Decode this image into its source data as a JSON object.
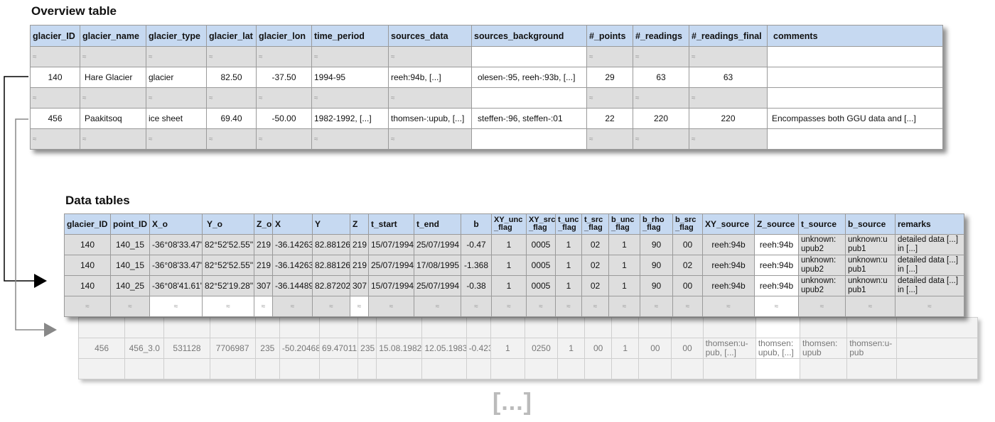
{
  "overview": {
    "title": "Overview table",
    "headers": [
      "glacier_ID",
      "glacier_name",
      "glacier_type",
      "glacier_lat",
      "glacier_lon",
      "time_period",
      "sources_data",
      "sources_background",
      "#_points",
      "#_readings",
      "#_readings_final",
      "comments"
    ],
    "rows": [
      [
        "140",
        "Hare Glacier",
        "glacier",
        "82.50",
        "-37.50",
        "1994-95",
        "reeh:94b, [...]",
        "olesen-:95, reeh-:93b, [...]",
        "29",
        "63",
        "63",
        ""
      ],
      [
        "456",
        "Paakitsoq",
        "ice sheet",
        "69.40",
        "-50.00",
        "1982-1992, [...]",
        "thomsen-:upub, [...]",
        "steffen-:96, steffen-:01",
        "22",
        "220",
        "220",
        "Encompasses both GGU data and [...]"
      ]
    ]
  },
  "data_tables": {
    "title": "Data tables",
    "headers": [
      "glacier_ID",
      "point_ID",
      "X_o",
      "Y_o",
      "Z_o",
      "X",
      "Y",
      "Z",
      "t_start",
      "t_end",
      "b",
      "XY_unc _flag",
      "XY_src _flag",
      "t_unc _flag",
      "t_src _flag",
      "b_unc _flag",
      "b_rho _flag",
      "b_src _flag",
      "XY_source",
      "Z_source",
      "t_source",
      "b_source",
      "remarks"
    ],
    "rows": [
      [
        "140",
        "140_15",
        "-36°08'33.47\"",
        "82°52'52.55\"",
        "219",
        "-36.14263",
        "82.88126",
        "219",
        "15/07/1994",
        "25/07/1994",
        "-0.47",
        "1",
        "0005",
        "1",
        "02",
        "1",
        "90",
        "00",
        "reeh:94b",
        "reeh:94b",
        "unknown: upub2",
        "unknown:u pub1",
        "detailed data [...] in [...]"
      ],
      [
        "140",
        "140_15",
        "-36°08'33.47\"",
        "82°52'52.55\"",
        "219",
        "-36.14263",
        "82.88126",
        "219",
        "25/07/1994",
        "17/08/1995",
        "-1.368",
        "1",
        "0005",
        "1",
        "02",
        "1",
        "90",
        "02",
        "reeh:94b",
        "reeh:94b",
        "unknown: upub2",
        "unknown:u pub1",
        "detailed data [...] in [...]"
      ],
      [
        "140",
        "140_25",
        "-36°08'41.61\"",
        "82°52'19.28\"",
        "307",
        "-36.14489",
        "82.87202",
        "307",
        "15/07/1994",
        "25/07/1994",
        "-0.38",
        "1",
        "0005",
        "1",
        "02",
        "1",
        "90",
        "00",
        "reeh:94b",
        "reeh:94b",
        "unknown: upub2",
        "unknown:u pub1",
        "detailed data [...] in [...]"
      ]
    ],
    "second_table_row": [
      "456",
      "456_3.0",
      "531128",
      "7706987",
      "235",
      "-50.20468",
      "69.47011",
      "235",
      "15.08.1982",
      "12.05.1983",
      "-0.423",
      "1",
      "0250",
      "1",
      "00",
      "1",
      "00",
      "00",
      "thomsen:u- pub, [...]",
      "thomsen: upub, [...]",
      "thomsen: upub",
      "thomsen:u- pub"
    ]
  },
  "ellipsis": "[...]",
  "break_mark": "≈"
}
